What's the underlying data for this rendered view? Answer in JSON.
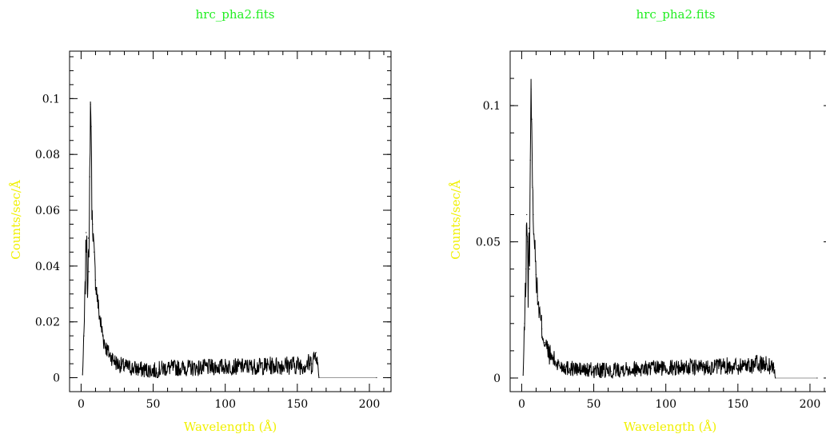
{
  "chart_data": [
    {
      "type": "line",
      "title": "hrc_pha2.fits",
      "xlabel": "Wavelength (Å)",
      "ylabel": "Counts/sec/Å",
      "xlim": [
        -8,
        215
      ],
      "ylim": [
        -0.005,
        0.117
      ],
      "grid": false,
      "xticks": [
        0,
        50,
        100,
        150,
        200
      ],
      "xtick_labels": [
        "0",
        "50",
        "100",
        "150",
        "200"
      ],
      "yticks": [
        0,
        0.02,
        0.04,
        0.06,
        0.08,
        0.1
      ],
      "ytick_labels": [
        "0",
        "0.02",
        "0.04",
        "0.06",
        "0.08",
        "0.1"
      ],
      "series": [
        {
          "x": [
            1,
            2,
            3,
            3.5,
            4,
            4.5,
            5,
            5.5,
            6,
            6.5,
            7,
            7.5,
            8,
            9,
            10,
            11,
            12,
            14,
            16,
            18,
            20,
            25,
            30,
            40,
            52,
            53,
            54,
            60,
            80,
            100,
            120,
            140,
            150,
            160,
            163,
            164,
            165,
            205
          ],
          "y": [
            0.001,
            0.015,
            0.035,
            0.052,
            0.045,
            0.03,
            0.05,
            0.038,
            0.072,
            0.098,
            0.09,
            0.06,
            0.055,
            0.045,
            0.035,
            0.03,
            0.025,
            0.018,
            0.013,
            0.01,
            0.008,
            0.005,
            0.004,
            0.003,
            0.0025,
            0.0,
            0.003,
            0.0035,
            0.0035,
            0.004,
            0.004,
            0.0045,
            0.0045,
            0.005,
            0.009,
            0.005,
            0.0,
            0.0
          ],
          "noise": [
            0,
            0.004,
            0.006,
            0.006,
            0.006,
            0.006,
            0.006,
            0.006,
            0.006,
            0.004,
            0.004,
            0.004,
            0.004,
            0.004,
            0.004,
            0.004,
            0.004,
            0.004,
            0.004,
            0.003,
            0.003,
            0.003,
            0.003,
            0.003,
            0.003,
            0,
            0.003,
            0.003,
            0.003,
            0.003,
            0.003,
            0.0035,
            0.0035,
            0.004,
            0.003,
            0.003,
            0,
            0
          ]
        }
      ]
    },
    {
      "type": "line",
      "title": "hrc_pha2.fits",
      "xlabel": "Wavelength (Å)",
      "ylabel": "Counts/sec/Å",
      "xlim": [
        -8,
        215
      ],
      "ylim": [
        -0.005,
        0.12
      ],
      "grid": false,
      "xticks": [
        0,
        50,
        100,
        150,
        200
      ],
      "xtick_labels": [
        "0",
        "50",
        "100",
        "150",
        "200"
      ],
      "yticks": [
        0,
        0.05,
        0.1
      ],
      "ytick_labels": [
        "0",
        "0.05",
        "0.1"
      ],
      "series": [
        {
          "x": [
            1,
            2,
            3,
            3.5,
            4,
            4.5,
            5,
            5.5,
            6,
            6.5,
            7,
            7.5,
            8,
            9,
            10,
            11,
            12,
            14,
            16,
            18,
            20,
            25,
            30,
            40,
            62,
            63,
            64,
            70,
            90,
            110,
            130,
            150,
            160,
            170,
            175,
            176,
            205
          ],
          "y": [
            0.001,
            0.02,
            0.04,
            0.06,
            0.05,
            0.03,
            0.055,
            0.04,
            0.08,
            0.106,
            0.095,
            0.07,
            0.06,
            0.05,
            0.038,
            0.03,
            0.025,
            0.018,
            0.013,
            0.01,
            0.008,
            0.005,
            0.004,
            0.003,
            0.0025,
            0.0,
            0.003,
            0.0035,
            0.0035,
            0.004,
            0.004,
            0.0045,
            0.005,
            0.005,
            0.004,
            0.0,
            0.0
          ],
          "noise": [
            0,
            0.005,
            0.007,
            0.007,
            0.007,
            0.007,
            0.007,
            0.007,
            0.007,
            0.005,
            0.005,
            0.005,
            0.005,
            0.005,
            0.005,
            0.005,
            0.005,
            0.005,
            0.004,
            0.004,
            0.004,
            0.003,
            0.003,
            0.003,
            0.003,
            0,
            0.003,
            0.003,
            0.003,
            0.003,
            0.003,
            0.0035,
            0.0035,
            0.0035,
            0.003,
            0,
            0
          ]
        }
      ]
    }
  ]
}
